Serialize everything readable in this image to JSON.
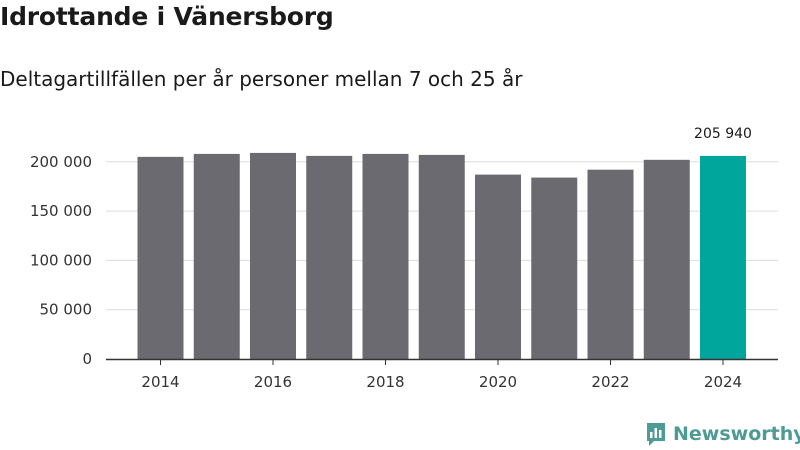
{
  "chart_data": {
    "type": "bar",
    "title": "Idrottande i Vänersborg",
    "subtitle": "Deltagartillfällen per år personer mellan 7 och 25 år",
    "categories": [
      "2014",
      "2015",
      "2016",
      "2017",
      "2018",
      "2019",
      "2020",
      "2021",
      "2022",
      "2023",
      "2024"
    ],
    "values": [
      205000,
      208000,
      209000,
      206000,
      208000,
      207000,
      187000,
      184000,
      192000,
      202000,
      205940
    ],
    "ylim": [
      0,
      215000
    ],
    "yticks": [
      0,
      50000,
      100000,
      150000,
      200000
    ],
    "ytick_labels": [
      "0",
      "50 000",
      "100 000",
      "150 000",
      "200 000"
    ],
    "xtick_labels": [
      "2014",
      "2016",
      "2018",
      "2020",
      "2022",
      "2024"
    ],
    "highlight_index": 10,
    "highlight_label": "205 940",
    "bar_color": "#6b6a70",
    "highlight_color": "#00a69c",
    "grid": true,
    "legend": "none"
  },
  "brand": {
    "name": "Newsworthy",
    "icon": "newsworthy-logo-icon",
    "color": "#4e9a95"
  }
}
